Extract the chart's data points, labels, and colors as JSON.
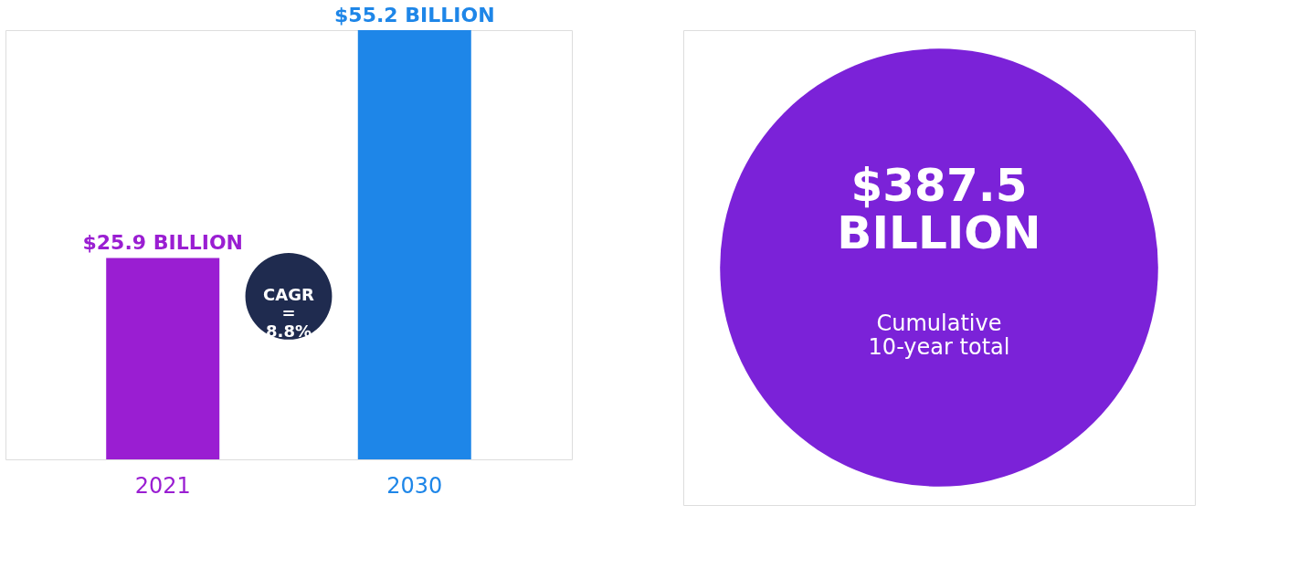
{
  "chart_data": [
    {
      "type": "bar",
      "categories": [
        "2021",
        "2030"
      ],
      "values": [
        25.9,
        55.2
      ],
      "colors": [
        "#9a1ed2",
        "#1e86e8"
      ],
      "value_labels": [
        "$25.9 BILLION",
        "$55.2 BILLION"
      ],
      "annotations": [
        "CAGR = 8.8%"
      ]
    },
    {
      "type": "other",
      "annotations": [
        "$387.5 BILLION",
        "Cumulative 10-year total"
      ],
      "color": "#7b22d8"
    }
  ]
}
